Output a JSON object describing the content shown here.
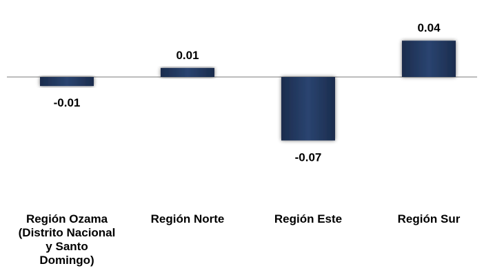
{
  "chart_data": {
    "type": "bar",
    "title": "",
    "xlabel": "",
    "ylabel": "",
    "categories": [
      [
        "Región Ozama",
        "(Distrito Nacional",
        "y Santo",
        "Domingo)"
      ],
      [
        "Región Norte"
      ],
      [
        "Región Este"
      ],
      [
        "Región Sur"
      ]
    ],
    "values": [
      -0.01,
      0.01,
      -0.07,
      0.04
    ],
    "value_labels": [
      "-0.01",
      "0.01",
      "-0.07",
      "0.04"
    ],
    "ylim": [
      -0.07,
      0.04
    ],
    "grid": false,
    "legend": "none",
    "bar_color": "#1f3358",
    "axis_color": "#a6a6a6"
  }
}
